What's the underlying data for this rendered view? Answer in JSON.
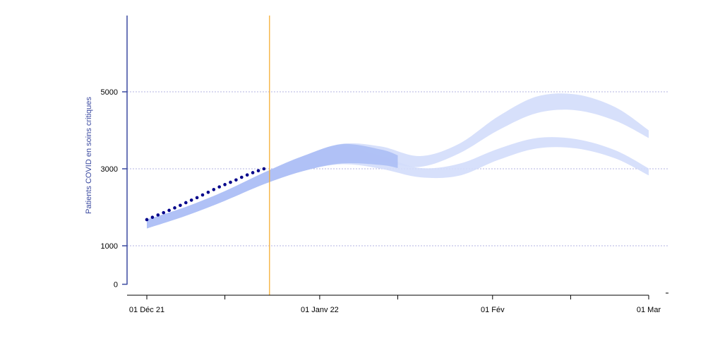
{
  "chart_data": {
    "type": "line",
    "title": "",
    "xlabel": "",
    "ylabel": "Patients COVID en soins critiques",
    "ylim": [
      0,
      7000
    ],
    "xlim": [
      "2021-12-01",
      "2022-03-01"
    ],
    "grid": "horizontal dotted at y ticks",
    "x_ticks": [
      {
        "date": "2021-12-01",
        "label": "01 Déc 21"
      },
      {
        "date": "2022-01-01",
        "label": "01 Janv 22"
      },
      {
        "date": "2022-02-01",
        "label": "01 Fév"
      },
      {
        "date": "2022-03-01",
        "label": "01 Mar"
      }
    ],
    "x_minor_ticks": [
      "2021-12-15",
      "2022-01-15",
      "2022-02-15"
    ],
    "y_ticks": [
      0,
      1000,
      3000,
      5000
    ],
    "vline": {
      "date": "2021-12-23",
      "color": "#f5a623"
    },
    "colors": {
      "observed": "#00008b",
      "band_dark": "#a9bcf5",
      "band_light": "#d3ddfb",
      "axis": "#3b4aa0",
      "grid": "#9b9bd6"
    },
    "observed": {
      "x": [
        "2021-12-01",
        "2021-12-02",
        "2021-12-03",
        "2021-12-04",
        "2021-12-05",
        "2021-12-06",
        "2021-12-07",
        "2021-12-08",
        "2021-12-09",
        "2021-12-10",
        "2021-12-11",
        "2021-12-12",
        "2021-12-13",
        "2021-12-14",
        "2021-12-15",
        "2021-12-16",
        "2021-12-17",
        "2021-12-18",
        "2021-12-19",
        "2021-12-20",
        "2021-12-21",
        "2021-12-22"
      ],
      "y": [
        1680,
        1740,
        1800,
        1860,
        1920,
        1985,
        2050,
        2120,
        2185,
        2250,
        2320,
        2390,
        2460,
        2530,
        2590,
        2650,
        2710,
        2780,
        2840,
        2900,
        2950,
        3000
      ]
    },
    "series": [
      {
        "x": [
          "2021-12-01",
          "2021-12-08",
          "2021-12-15",
          "2021-12-22",
          "2021-12-29",
          "2022-01-05",
          "2022-01-12",
          "2022-01-19",
          "2022-01-26",
          "2022-02-02",
          "2022-02-09",
          "2022-02-16",
          "2022-02-23",
          "2022-03-01"
        ],
        "lower": [
          1450,
          1780,
          2170,
          2600,
          2940,
          3180,
          3180,
          3050,
          3400,
          4000,
          4450,
          4520,
          4250,
          3800
        ],
        "upper": [
          1680,
          2010,
          2420,
          2900,
          3330,
          3650,
          3580,
          3330,
          3650,
          4360,
          4880,
          4930,
          4600,
          4000
        ],
        "color": "band_light"
      },
      {
        "x": [
          "2021-12-01",
          "2021-12-08",
          "2021-12-15",
          "2021-12-22",
          "2021-12-29",
          "2022-01-05",
          "2022-01-12",
          "2022-01-19",
          "2022-01-26",
          "2022-02-02",
          "2022-02-09",
          "2022-02-16",
          "2022-02-23",
          "2022-03-01"
        ],
        "lower": [
          1450,
          1780,
          2170,
          2600,
          2940,
          3120,
          3000,
          2780,
          2820,
          3230,
          3530,
          3530,
          3270,
          2830
        ],
        "upper": [
          1680,
          2010,
          2420,
          2900,
          3330,
          3580,
          3330,
          3020,
          3130,
          3520,
          3800,
          3770,
          3480,
          3010
        ],
        "color": "band_light"
      },
      {
        "x": [
          "2021-12-01",
          "2021-12-08",
          "2021-12-15",
          "2021-12-22",
          "2021-12-29",
          "2022-01-05",
          "2022-01-12",
          "2022-01-15"
        ],
        "lower": [
          1450,
          1780,
          2170,
          2600,
          2940,
          3140,
          3100,
          3020
        ],
        "upper": [
          1680,
          2010,
          2420,
          2900,
          3330,
          3640,
          3500,
          3350
        ],
        "color": "band_dark"
      }
    ]
  }
}
